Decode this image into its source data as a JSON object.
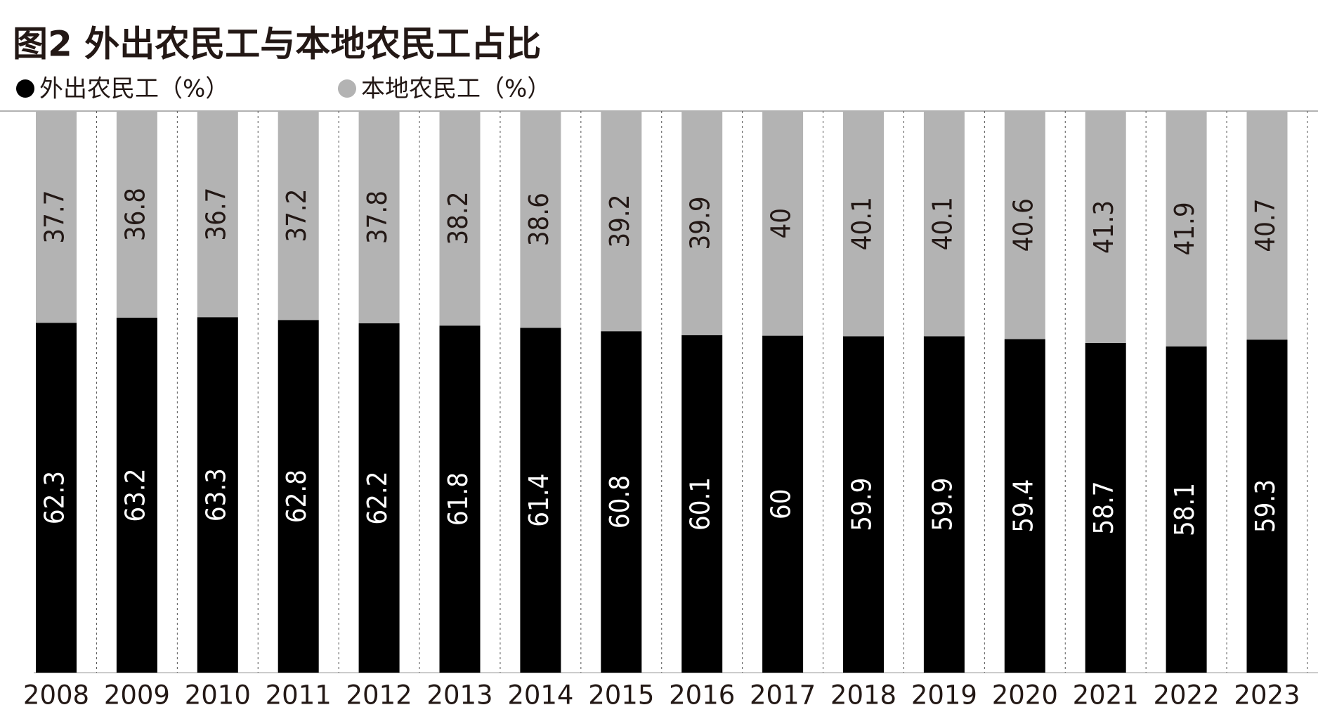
{
  "chart_data": {
    "type": "stacked-bar",
    "title": "图2 外出农民工与本地农民工占比",
    "categories": [
      "2008",
      "2009",
      "2010",
      "2011",
      "2012",
      "2013",
      "2014",
      "2015",
      "2016",
      "2017",
      "2018",
      "2019",
      "2020",
      "2021",
      "2022",
      "2023"
    ],
    "series": [
      {
        "name": "外出农民工（%）",
        "color": "#000000",
        "values": [
          62.3,
          63.2,
          63.3,
          62.8,
          62.2,
          61.8,
          61.4,
          60.8,
          60.1,
          60,
          59.9,
          59.9,
          59.4,
          58.7,
          58.1,
          59.3
        ]
      },
      {
        "name": "本地农民工（%）",
        "color": "#b3b3b3",
        "values": [
          37.7,
          36.8,
          36.7,
          37.2,
          37.8,
          38.2,
          38.6,
          39.2,
          39.9,
          40,
          40.1,
          40.1,
          40.6,
          41.3,
          41.9,
          40.7
        ]
      }
    ],
    "ylim": [
      0,
      100
    ]
  }
}
